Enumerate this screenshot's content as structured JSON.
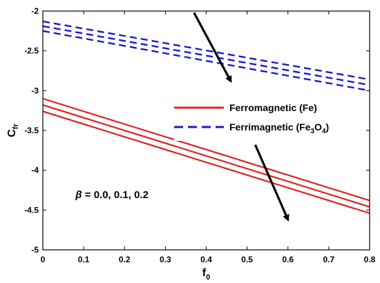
{
  "chart_data": {
    "type": "line",
    "xlabel": {
      "main": "f",
      "sub": "0"
    },
    "ylabel": {
      "main": "C",
      "sub": "fr"
    },
    "xlim": [
      0,
      0.8
    ],
    "ylim": [
      -5,
      -2
    ],
    "xticks": [
      0,
      0.1,
      0.2,
      0.3,
      0.4,
      0.5,
      0.6,
      0.7,
      0.8
    ],
    "yticks": [
      -5,
      -4.5,
      -4,
      -3.5,
      -3,
      -2.5,
      -2
    ],
    "xtick_labels": [
      "0",
      "0.1",
      "0.2",
      "0.3",
      "0.4",
      "0.5",
      "0.6",
      "0.7",
      "0.8"
    ],
    "ytick_labels": [
      "-5",
      "-4.5",
      "-4",
      "-3.5",
      "-3",
      "-2.5",
      "-2"
    ],
    "grid": false,
    "series": [
      {
        "group": "Ferromagnetic (Fe)",
        "beta": 0.0,
        "color": "#e02020",
        "dash": "solid",
        "x": [
          0,
          0.8
        ],
        "y": [
          -3.1,
          -4.38
        ]
      },
      {
        "group": "Ferromagnetic (Fe)",
        "beta": 0.1,
        "color": "#e02020",
        "dash": "solid",
        "x": [
          0,
          0.8
        ],
        "y": [
          -3.18,
          -4.46
        ]
      },
      {
        "group": "Ferromagnetic (Fe)",
        "beta": 0.2,
        "color": "#e02020",
        "dash": "solid",
        "x": [
          0,
          0.8
        ],
        "y": [
          -3.26,
          -4.54
        ]
      },
      {
        "group": "Ferrimagnetic (Fe3O4)",
        "beta": 0.0,
        "color": "#1a1acc",
        "dash": "dashed",
        "x": [
          0,
          0.8
        ],
        "y": [
          -2.13,
          -2.86
        ]
      },
      {
        "group": "Ferrimagnetic (Fe3O4)",
        "beta": 0.1,
        "color": "#1a1acc",
        "dash": "dashed",
        "x": [
          0,
          0.8
        ],
        "y": [
          -2.19,
          -2.93
        ]
      },
      {
        "group": "Ferrimagnetic (Fe3O4)",
        "beta": 0.2,
        "color": "#1a1acc",
        "dash": "dashed",
        "x": [
          0,
          0.8
        ],
        "y": [
          -2.25,
          -3.0
        ]
      }
    ],
    "legend": {
      "placement": "center-right",
      "entries": [
        {
          "label": "Ferromagnetic (Fe)",
          "color": "#e02020",
          "dash": "solid"
        },
        {
          "label_parts": [
            "Ferrimagnetic (Fe",
            "3",
            "O",
            "4",
            ")"
          ],
          "color": "#1a1acc",
          "dash": "dashed"
        }
      ]
    },
    "annotations": {
      "beta_text": {
        "symbol": "β",
        "text": " = 0.0, 0.1, 0.2",
        "x": 0.08,
        "y": -4.35
      },
      "arrows": [
        {
          "name": "arrow-ferrimagnetic",
          "from": [
            0.37,
            -2.02
          ],
          "to": [
            0.46,
            -2.88
          ]
        },
        {
          "name": "arrow-ferromagnetic",
          "from": [
            0.52,
            -3.68
          ],
          "to": [
            0.6,
            -4.62
          ]
        }
      ]
    }
  }
}
